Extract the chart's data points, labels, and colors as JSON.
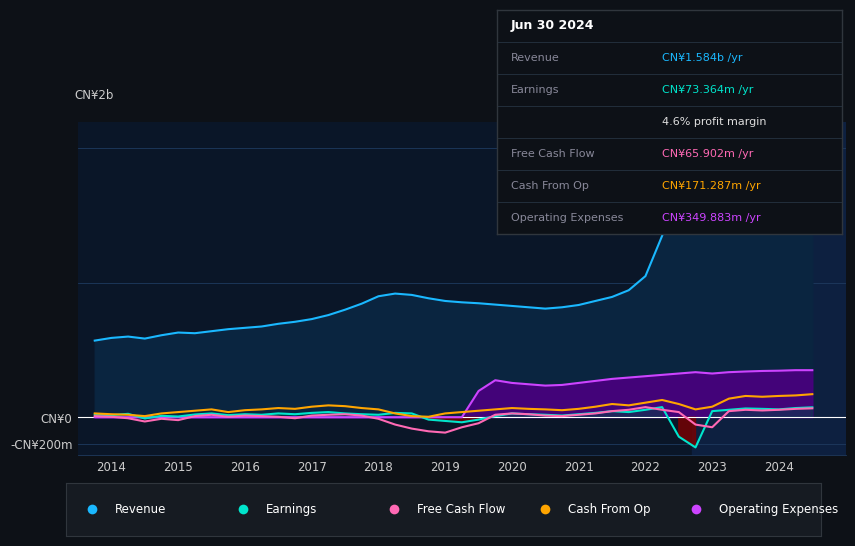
{
  "bg_color": "#0d1117",
  "plot_bg_color": "#0a1628",
  "grid_color": "#1e3a5f",
  "ylim": [
    -280000000,
    2200000000
  ],
  "xlim": [
    2013.5,
    2025.0
  ],
  "xticks": [
    2014,
    2015,
    2016,
    2017,
    2018,
    2019,
    2020,
    2021,
    2022,
    2023,
    2024
  ],
  "ytick_labels": [
    "-CN¥200m",
    "CN¥0",
    "CN¥2b"
  ],
  "revenue_color": "#1ab8ff",
  "revenue_fill": "#0a2540",
  "earnings_color": "#00e5cc",
  "fcf_color": "#ff69b4",
  "cashfromop_color": "#ffa500",
  "opex_color": "#cc44ff",
  "opex_fill": "#4a0080",
  "shaded_bg": "#0d2040",
  "shaded_start": 2022.7,
  "legend_bg": "#161b22",
  "legend_border": "#30363d",
  "infobox_bg": "#0d1117",
  "infobox_border": "#30363d",
  "revenue": {
    "x": [
      2013.75,
      2014.0,
      2014.25,
      2014.5,
      2014.75,
      2015.0,
      2015.25,
      2015.5,
      2015.75,
      2016.0,
      2016.25,
      2016.5,
      2016.75,
      2017.0,
      2017.25,
      2017.5,
      2017.75,
      2018.0,
      2018.25,
      2018.5,
      2018.75,
      2019.0,
      2019.25,
      2019.5,
      2019.75,
      2020.0,
      2020.25,
      2020.5,
      2020.75,
      2021.0,
      2021.25,
      2021.5,
      2021.75,
      2022.0,
      2022.25,
      2022.5,
      2022.75,
      2023.0,
      2023.25,
      2023.5,
      2023.75,
      2024.0,
      2024.25,
      2024.5
    ],
    "y": [
      570000000,
      590000000,
      600000000,
      585000000,
      610000000,
      630000000,
      625000000,
      640000000,
      655000000,
      665000000,
      675000000,
      695000000,
      710000000,
      730000000,
      760000000,
      800000000,
      845000000,
      900000000,
      920000000,
      910000000,
      885000000,
      865000000,
      855000000,
      848000000,
      838000000,
      828000000,
      818000000,
      808000000,
      818000000,
      835000000,
      865000000,
      895000000,
      945000000,
      1050000000,
      1350000000,
      1720000000,
      1980000000,
      1860000000,
      1610000000,
      1760000000,
      1860000000,
      1910000000,
      1810000000,
      1584000000
    ]
  },
  "earnings": {
    "x": [
      2013.75,
      2014.0,
      2014.25,
      2014.5,
      2014.75,
      2015.0,
      2015.25,
      2015.5,
      2015.75,
      2016.0,
      2016.25,
      2016.5,
      2016.75,
      2017.0,
      2017.25,
      2017.5,
      2017.75,
      2018.0,
      2018.25,
      2018.5,
      2018.75,
      2019.0,
      2019.25,
      2019.5,
      2019.75,
      2020.0,
      2020.25,
      2020.5,
      2020.75,
      2021.0,
      2021.25,
      2021.5,
      2021.75,
      2022.0,
      2022.25,
      2022.5,
      2022.75,
      2023.0,
      2023.25,
      2023.5,
      2023.75,
      2024.0,
      2024.25,
      2024.5
    ],
    "y": [
      20000000,
      15000000,
      25000000,
      -10000000,
      10000000,
      5000000,
      20000000,
      28000000,
      15000000,
      22000000,
      18000000,
      28000000,
      22000000,
      32000000,
      38000000,
      28000000,
      22000000,
      18000000,
      32000000,
      28000000,
      -18000000,
      -28000000,
      -38000000,
      -18000000,
      8000000,
      28000000,
      22000000,
      18000000,
      12000000,
      22000000,
      32000000,
      45000000,
      38000000,
      55000000,
      75000000,
      -145000000,
      -225000000,
      45000000,
      55000000,
      65000000,
      62000000,
      58000000,
      68000000,
      73364000
    ]
  },
  "fcf": {
    "x": [
      2013.75,
      2014.0,
      2014.25,
      2014.5,
      2014.75,
      2015.0,
      2015.25,
      2015.5,
      2015.75,
      2016.0,
      2016.25,
      2016.5,
      2016.75,
      2017.0,
      2017.25,
      2017.5,
      2017.75,
      2018.0,
      2018.25,
      2018.5,
      2018.75,
      2019.0,
      2019.25,
      2019.5,
      2019.75,
      2020.0,
      2020.25,
      2020.5,
      2020.75,
      2021.0,
      2021.25,
      2021.5,
      2021.75,
      2022.0,
      2022.25,
      2022.5,
      2022.75,
      2023.0,
      2023.25,
      2023.5,
      2023.75,
      2024.0,
      2024.25,
      2024.5
    ],
    "y": [
      8000000,
      3000000,
      -8000000,
      -32000000,
      -12000000,
      -22000000,
      8000000,
      18000000,
      3000000,
      12000000,
      8000000,
      3000000,
      -8000000,
      12000000,
      18000000,
      22000000,
      12000000,
      -12000000,
      -55000000,
      -85000000,
      -105000000,
      -115000000,
      -75000000,
      -45000000,
      18000000,
      28000000,
      22000000,
      12000000,
      8000000,
      18000000,
      28000000,
      45000000,
      55000000,
      75000000,
      55000000,
      38000000,
      -55000000,
      -75000000,
      45000000,
      55000000,
      50000000,
      55000000,
      62000000,
      65902000
    ]
  },
  "cashfromop": {
    "x": [
      2013.75,
      2014.0,
      2014.25,
      2014.5,
      2014.75,
      2015.0,
      2015.25,
      2015.5,
      2015.75,
      2016.0,
      2016.25,
      2016.5,
      2016.75,
      2017.0,
      2017.25,
      2017.5,
      2017.75,
      2018.0,
      2018.25,
      2018.5,
      2018.75,
      2019.0,
      2019.25,
      2019.5,
      2019.75,
      2020.0,
      2020.25,
      2020.5,
      2020.75,
      2021.0,
      2021.25,
      2021.5,
      2021.75,
      2022.0,
      2022.25,
      2022.5,
      2022.75,
      2023.0,
      2023.25,
      2023.5,
      2023.75,
      2024.0,
      2024.25,
      2024.5
    ],
    "y": [
      28000000,
      22000000,
      18000000,
      8000000,
      28000000,
      38000000,
      48000000,
      58000000,
      38000000,
      52000000,
      58000000,
      68000000,
      62000000,
      78000000,
      88000000,
      82000000,
      68000000,
      58000000,
      28000000,
      8000000,
      3000000,
      28000000,
      38000000,
      48000000,
      58000000,
      68000000,
      62000000,
      58000000,
      52000000,
      62000000,
      78000000,
      98000000,
      88000000,
      108000000,
      128000000,
      98000000,
      58000000,
      78000000,
      138000000,
      158000000,
      152000000,
      158000000,
      162000000,
      171287000
    ]
  },
  "opex": {
    "x": [
      2013.75,
      2014.0,
      2014.25,
      2014.5,
      2014.75,
      2015.0,
      2015.25,
      2015.5,
      2015.75,
      2016.0,
      2016.25,
      2016.5,
      2016.75,
      2017.0,
      2017.25,
      2017.5,
      2017.75,
      2018.0,
      2018.25,
      2018.5,
      2018.75,
      2019.0,
      2019.25,
      2019.5,
      2019.75,
      2020.0,
      2020.25,
      2020.5,
      2020.75,
      2021.0,
      2021.25,
      2021.5,
      2021.75,
      2022.0,
      2022.25,
      2022.5,
      2022.75,
      2023.0,
      2023.25,
      2023.5,
      2023.75,
      2024.0,
      2024.25,
      2024.5
    ],
    "y": [
      0,
      0,
      0,
      0,
      0,
      0,
      0,
      0,
      0,
      0,
      0,
      0,
      0,
      0,
      0,
      0,
      0,
      0,
      0,
      0,
      0,
      0,
      0,
      195000000,
      275000000,
      255000000,
      245000000,
      235000000,
      240000000,
      255000000,
      270000000,
      285000000,
      295000000,
      305000000,
      315000000,
      325000000,
      335000000,
      325000000,
      335000000,
      340000000,
      344000000,
      346000000,
      349883000,
      349883000
    ]
  },
  "info_rows": [
    {
      "label": "Jun 30 2024",
      "value": "",
      "lcolor": "#ffffff",
      "vcolor": "#ffffff",
      "header": true
    },
    {
      "label": "Revenue",
      "value": "CN¥1.584b /yr",
      "lcolor": "#888899",
      "vcolor": "#1ab8ff",
      "header": false
    },
    {
      "label": "Earnings",
      "value": "CN¥73.364m /yr",
      "lcolor": "#888899",
      "vcolor": "#00e5cc",
      "header": false
    },
    {
      "label": "",
      "value": "4.6% profit margin",
      "lcolor": "#888899",
      "vcolor": "#dddddd",
      "header": false
    },
    {
      "label": "Free Cash Flow",
      "value": "CN¥65.902m /yr",
      "lcolor": "#888899",
      "vcolor": "#ff69b4",
      "header": false
    },
    {
      "label": "Cash From Op",
      "value": "CN¥171.287m /yr",
      "lcolor": "#888899",
      "vcolor": "#ffa500",
      "header": false
    },
    {
      "label": "Operating Expenses",
      "value": "CN¥349.883m /yr",
      "lcolor": "#888899",
      "vcolor": "#cc44ff",
      "header": false
    }
  ],
  "legend_items": [
    {
      "label": "Revenue",
      "color": "#1ab8ff"
    },
    {
      "label": "Earnings",
      "color": "#00e5cc"
    },
    {
      "label": "Free Cash Flow",
      "color": "#ff69b4"
    },
    {
      "label": "Cash From Op",
      "color": "#ffa500"
    },
    {
      "label": "Operating Expenses",
      "color": "#cc44ff"
    }
  ]
}
